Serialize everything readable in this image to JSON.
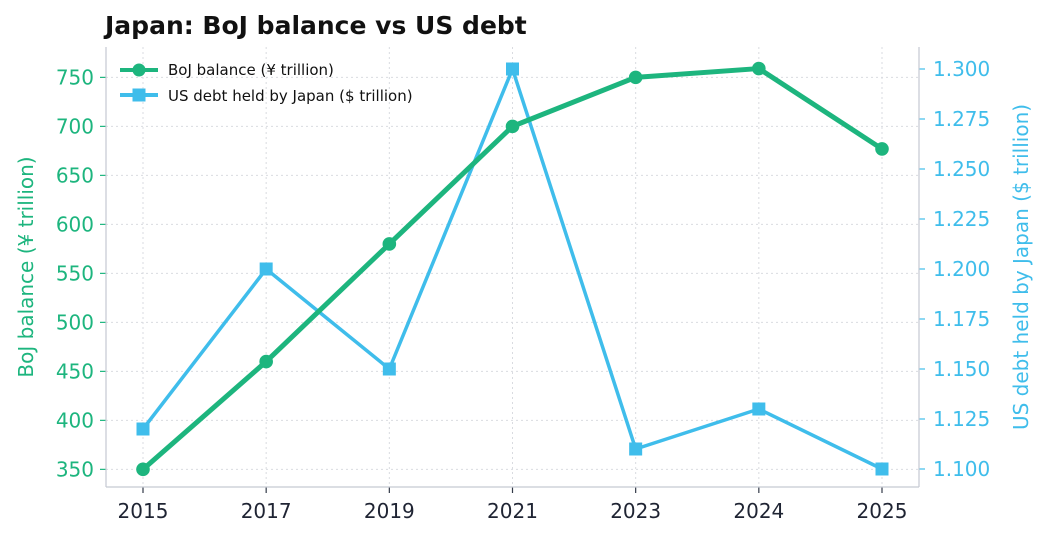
{
  "chart_data": {
    "type": "line",
    "title": "Japan: BoJ balance vs US debt",
    "x": [
      "2015",
      "2017",
      "2019",
      "2021",
      "2023",
      "2024",
      "2025"
    ],
    "xlabel": "",
    "grid": true,
    "legend_position": "top-left",
    "series": [
      {
        "name": "BoJ balance (¥ trillion)",
        "axis": "left",
        "color": "#1db57e",
        "marker": "circle",
        "values": [
          350,
          460,
          580,
          700,
          750,
          759,
          677
        ]
      },
      {
        "name": "US debt held by Japan ($ trillion)",
        "axis": "right",
        "color": "#3fbdeb",
        "marker": "square",
        "values": [
          1.12,
          1.2,
          1.15,
          1.3,
          1.11,
          1.13,
          1.1
        ]
      }
    ],
    "y_left": {
      "label": "BoJ balance (¥ trillion)",
      "ticks": [
        "350",
        "400",
        "450",
        "500",
        "550",
        "600",
        "650",
        "700",
        "750"
      ],
      "range": [
        332,
        781
      ]
    },
    "y_right": {
      "label": "US debt held by Japan ($ trillion)",
      "ticks": [
        "1.100",
        "1.125",
        "1.150",
        "1.175",
        "1.200",
        "1.225",
        "1.250",
        "1.275",
        "1.300"
      ],
      "range": [
        1.091,
        1.311
      ]
    }
  }
}
